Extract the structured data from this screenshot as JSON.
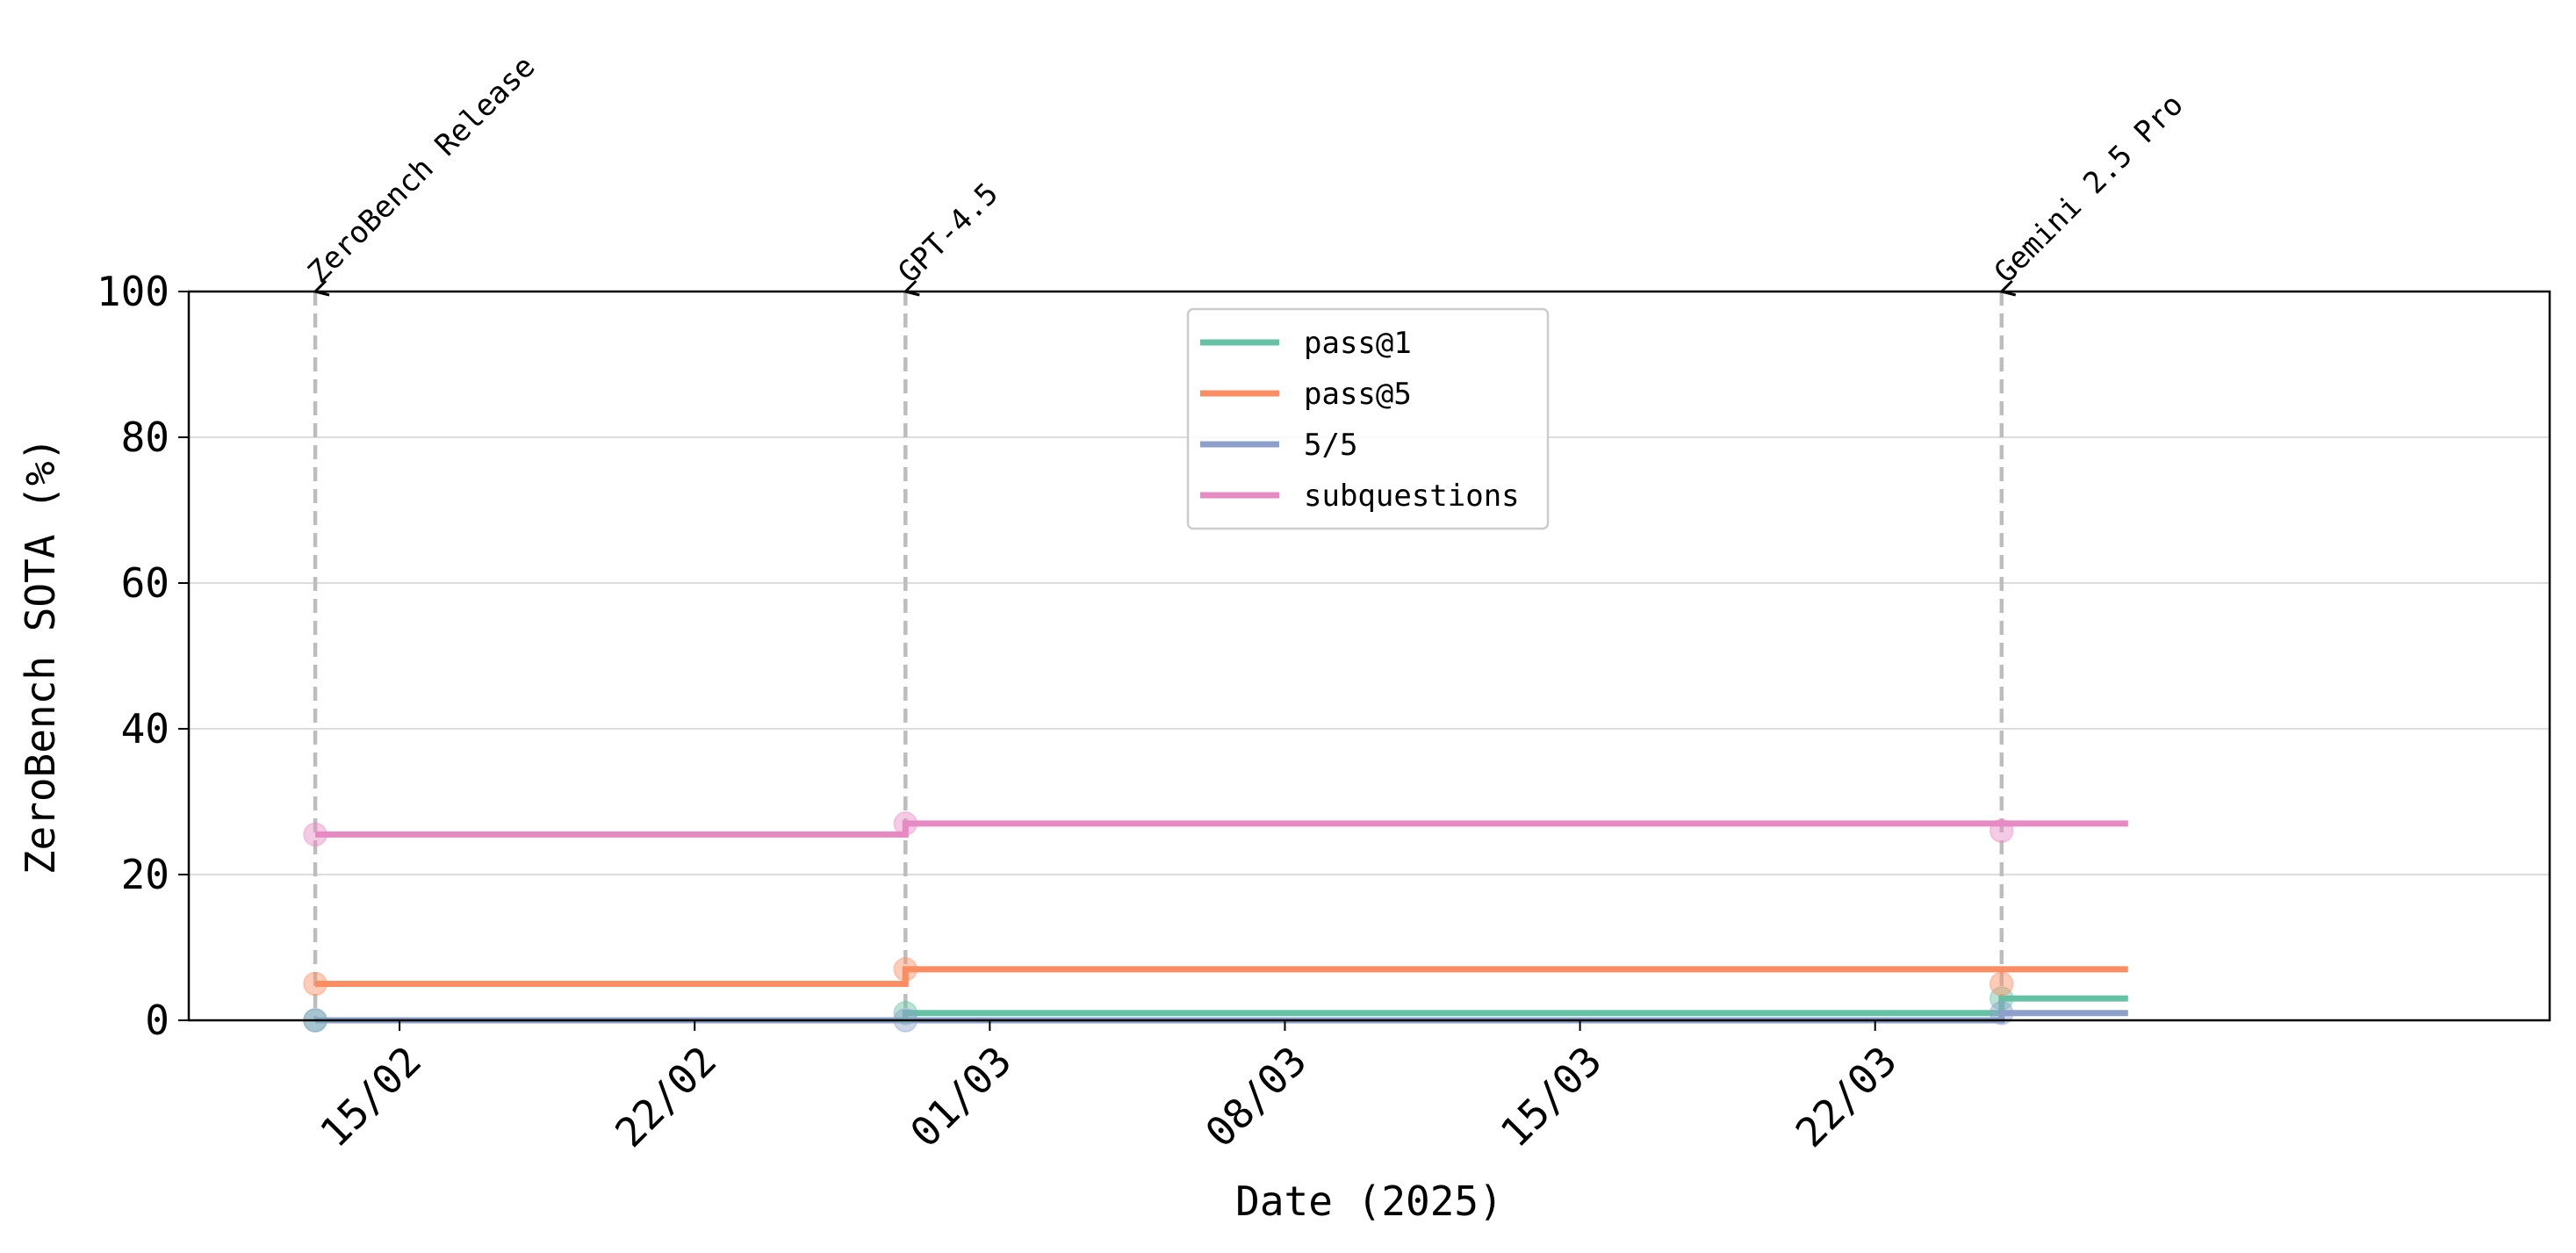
{
  "chart_data": {
    "type": "line",
    "title": "",
    "xlabel": "Date (2025)",
    "ylabel": "ZeroBench SOTA (%)",
    "ylim": [
      0,
      100
    ],
    "xlim": [
      "2025-02-10",
      "2025-04-07"
    ],
    "x_ticks": [
      {
        "date": "2025-02-15",
        "label": "15/02"
      },
      {
        "date": "2025-02-22",
        "label": "22/02"
      },
      {
        "date": "2025-03-01",
        "label": "01/03"
      },
      {
        "date": "2025-03-08",
        "label": "08/03"
      },
      {
        "date": "2025-03-15",
        "label": "15/03"
      },
      {
        "date": "2025-03-22",
        "label": "22/03"
      }
    ],
    "y_ticks": [
      0,
      20,
      40,
      60,
      80,
      100
    ],
    "grid": "horizontal",
    "legend_position": "upper-center",
    "line_end_date": "2025-03-28",
    "annotations": [
      {
        "date": "2025-02-13",
        "label": "ZeroBench Release"
      },
      {
        "date": "2025-02-27",
        "label": "GPT-4.5"
      },
      {
        "date": "2025-03-25",
        "label": "Gemini 2.5 Pro"
      }
    ],
    "series": [
      {
        "name": "pass@1",
        "color": "#66c2a5",
        "points": [
          [
            "2025-02-13",
            0
          ],
          [
            "2025-02-27",
            1
          ],
          [
            "2025-03-25",
            3
          ]
        ]
      },
      {
        "name": "pass@5",
        "color": "#fc8d62",
        "points": [
          [
            "2025-02-13",
            5
          ],
          [
            "2025-02-27",
            7
          ],
          [
            "2025-03-25",
            5
          ]
        ]
      },
      {
        "name": "5/5",
        "color": "#8da0cb",
        "points": [
          [
            "2025-02-13",
            0
          ],
          [
            "2025-02-27",
            0
          ],
          [
            "2025-03-25",
            1
          ]
        ]
      },
      {
        "name": "subquestions",
        "color": "#e78ac3",
        "points": [
          [
            "2025-02-13",
            25.5
          ],
          [
            "2025-02-27",
            27
          ],
          [
            "2025-03-25",
            26
          ]
        ]
      }
    ]
  }
}
